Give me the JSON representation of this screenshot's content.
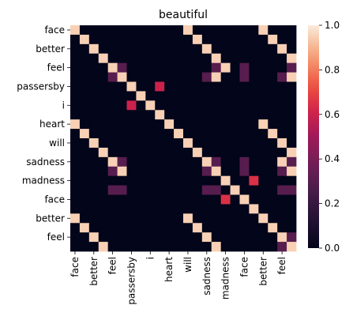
{
  "chart_data": {
    "type": "heatmap",
    "title": "beautiful",
    "labels": [
      "face",
      "better",
      "feel",
      "passersby",
      "i",
      "heart",
      "will",
      "sadness",
      "madness",
      "face",
      "better",
      "feel"
    ],
    "tokens": [
      "face",
      "face",
      "better",
      "better",
      "feel",
      "feel",
      "passersby",
      "passersby",
      "i",
      "i",
      "heart",
      "heart",
      "will",
      "will",
      "sadness",
      "sadness",
      "madness",
      "madness",
      "face",
      "face",
      "better",
      "better",
      "feel",
      "feel"
    ],
    "values": [
      [
        0.95,
        0,
        0,
        0,
        0,
        0,
        0,
        0,
        0,
        0,
        0,
        0,
        0.95,
        0,
        0,
        0,
        0,
        0,
        0,
        0,
        0.95,
        0,
        0,
        0
      ],
      [
        0,
        0.95,
        0,
        0,
        0,
        0,
        0,
        0,
        0,
        0,
        0,
        0,
        0,
        0.95,
        0,
        0,
        0,
        0,
        0,
        0,
        0,
        0.95,
        0,
        0
      ],
      [
        0,
        0,
        0.95,
        0,
        0,
        0,
        0,
        0,
        0,
        0,
        0,
        0,
        0,
        0,
        0.95,
        0,
        0,
        0,
        0,
        0,
        0,
        0,
        0.95,
        0
      ],
      [
        0,
        0,
        0,
        0.95,
        0,
        0,
        0,
        0,
        0,
        0,
        0,
        0,
        0,
        0,
        0,
        0.95,
        0,
        0,
        0,
        0,
        0,
        0,
        0,
        0.95
      ],
      [
        0,
        0,
        0,
        0,
        0.95,
        0.3,
        0,
        0,
        0,
        0,
        0,
        0,
        0,
        0,
        0,
        0.3,
        0.95,
        0,
        0.3,
        0,
        0,
        0,
        0,
        0.3
      ],
      [
        0,
        0,
        0,
        0,
        0.3,
        0.95,
        0,
        0,
        0,
        0,
        0,
        0,
        0,
        0,
        0.3,
        0.95,
        0,
        0,
        0.3,
        0,
        0,
        0,
        0.3,
        0.95
      ],
      [
        0,
        0,
        0,
        0,
        0,
        0,
        0.95,
        0,
        0,
        0.6,
        0,
        0,
        0,
        0,
        0,
        0,
        0,
        0,
        0,
        0,
        0,
        0,
        0,
        0
      ],
      [
        0,
        0,
        0,
        0,
        0,
        0,
        0,
        0.95,
        0,
        0,
        0,
        0,
        0,
        0,
        0,
        0,
        0,
        0,
        0,
        0,
        0,
        0,
        0,
        0
      ],
      [
        0,
        0,
        0,
        0,
        0,
        0,
        0.6,
        0,
        0.95,
        0,
        0,
        0,
        0,
        0,
        0,
        0,
        0,
        0,
        0,
        0,
        0,
        0,
        0,
        0
      ],
      [
        0,
        0,
        0,
        0,
        0,
        0,
        0,
        0,
        0,
        0.95,
        0,
        0,
        0,
        0,
        0,
        0,
        0,
        0,
        0,
        0,
        0,
        0,
        0,
        0
      ],
      [
        0.95,
        0,
        0,
        0,
        0,
        0,
        0,
        0,
        0,
        0,
        0.95,
        0,
        0,
        0,
        0,
        0,
        0,
        0,
        0,
        0,
        0.95,
        0,
        0,
        0
      ],
      [
        0,
        0.95,
        0,
        0,
        0,
        0,
        0,
        0,
        0,
        0,
        0,
        0.95,
        0,
        0,
        0,
        0,
        0,
        0,
        0,
        0,
        0,
        0.95,
        0,
        0
      ],
      [
        0,
        0,
        0.95,
        0,
        0,
        0,
        0,
        0,
        0,
        0,
        0,
        0,
        0.95,
        0,
        0,
        0,
        0,
        0,
        0,
        0,
        0,
        0,
        0.95,
        0
      ],
      [
        0,
        0,
        0,
        0.95,
        0,
        0,
        0,
        0,
        0,
        0,
        0,
        0,
        0,
        0.95,
        0,
        0,
        0,
        0,
        0,
        0,
        0,
        0,
        0,
        0.95
      ],
      [
        0,
        0,
        0,
        0,
        0.95,
        0.3,
        0,
        0,
        0,
        0,
        0,
        0,
        0,
        0,
        0.95,
        0.3,
        0,
        0,
        0.3,
        0,
        0,
        0,
        0.95,
        0.3
      ],
      [
        0,
        0,
        0,
        0,
        0.3,
        0.95,
        0,
        0,
        0,
        0,
        0,
        0,
        0,
        0,
        0.3,
        0.95,
        0,
        0,
        0.3,
        0,
        0,
        0,
        0.3,
        0.95
      ],
      [
        0,
        0,
        0,
        0,
        0,
        0,
        0,
        0,
        0,
        0,
        0,
        0,
        0,
        0,
        0,
        0,
        0.95,
        0,
        0,
        0.65,
        0,
        0,
        0,
        0
      ],
      [
        0,
        0,
        0,
        0,
        0.3,
        0.3,
        0,
        0,
        0,
        0,
        0,
        0,
        0,
        0,
        0.3,
        0.3,
        0,
        0.95,
        0,
        0,
        0,
        0,
        0.3,
        0.3
      ],
      [
        0,
        0,
        0,
        0,
        0,
        0,
        0,
        0,
        0,
        0,
        0,
        0,
        0,
        0,
        0,
        0,
        0.65,
        0,
        0.95,
        0,
        0,
        0,
        0,
        0
      ],
      [
        0,
        0,
        0,
        0,
        0,
        0,
        0,
        0,
        0,
        0,
        0,
        0,
        0,
        0,
        0,
        0,
        0,
        0,
        0,
        0.95,
        0,
        0,
        0,
        0
      ],
      [
        0.95,
        0,
        0,
        0,
        0,
        0,
        0,
        0,
        0,
        0,
        0,
        0,
        0.95,
        0,
        0,
        0,
        0,
        0,
        0,
        0,
        0.95,
        0,
        0,
        0
      ],
      [
        0,
        0.95,
        0,
        0,
        0,
        0,
        0,
        0,
        0,
        0,
        0,
        0,
        0,
        0.95,
        0,
        0,
        0,
        0,
        0,
        0,
        0,
        0.95,
        0,
        0
      ],
      [
        0,
        0,
        0.95,
        0,
        0,
        0,
        0,
        0,
        0,
        0,
        0,
        0,
        0,
        0,
        0.95,
        0,
        0,
        0,
        0,
        0,
        0,
        0,
        0.95,
        0.3
      ],
      [
        0,
        0,
        0,
        0.95,
        0,
        0,
        0,
        0,
        0,
        0,
        0,
        0,
        0,
        0,
        0,
        0.95,
        0,
        0,
        0,
        0,
        0,
        0,
        0.3,
        0.95
      ]
    ],
    "colorbar": {
      "min": 0,
      "max": 1,
      "ticks": [
        "0.0",
        "0.2",
        "0.4",
        "0.6",
        "0.8",
        "1.0"
      ]
    },
    "colormap": "rocket"
  }
}
